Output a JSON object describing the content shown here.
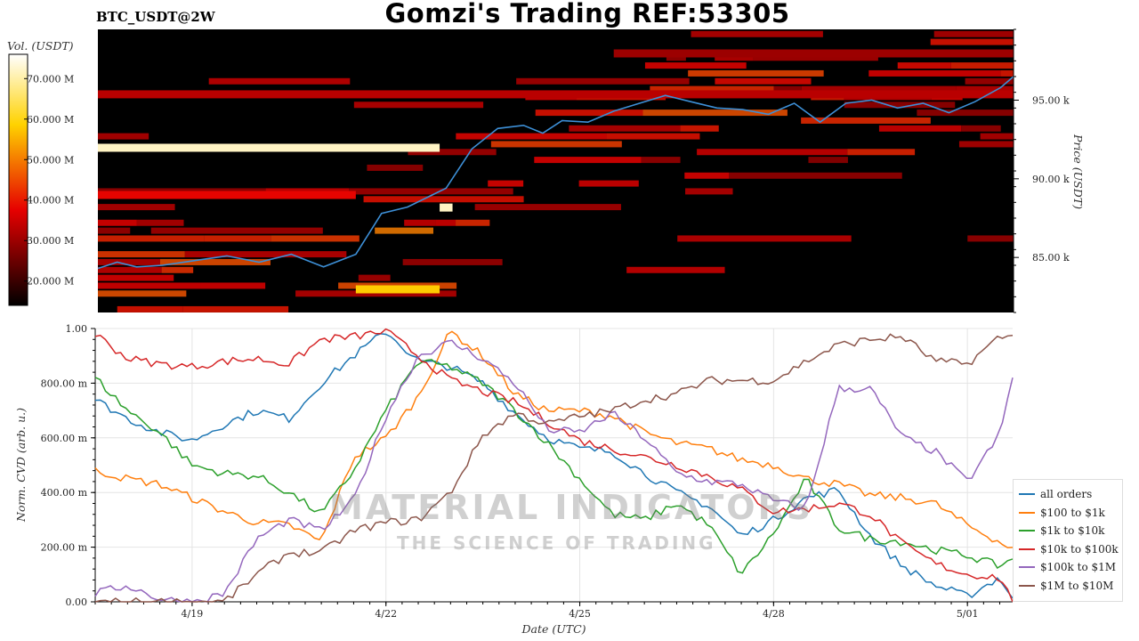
{
  "header": {
    "symbol": "BTC_USDT@2W",
    "title": "Gomzi's Trading REF:53305"
  },
  "watermark": {
    "line1": "MATERIAL INDICATORS",
    "line2": "THE SCIENCE OF TRADING"
  },
  "colorbar": {
    "label": "Vol. (USDT)",
    "ticks": [
      "20.000 M",
      "30.000 M",
      "40.000 M",
      "50.000 M",
      "60.000 M",
      "70.000 M"
    ],
    "tick_values": [
      20,
      30,
      40,
      50,
      60,
      70
    ],
    "range": [
      14,
      76
    ]
  },
  "chart_data": [
    {
      "type": "heatmap",
      "title": "",
      "ylabel": "Price (USDT)",
      "yticks": [
        "85.00 k",
        "90.00 k",
        "95.00 k"
      ],
      "ytick_values": [
        85000,
        90000,
        95000
      ],
      "ylim": [
        81500,
        99500
      ],
      "xlim": [
        0,
        14.2
      ],
      "price_line": {
        "color": "#3d8fd6",
        "x": [
          0,
          0.3,
          0.6,
          1,
          1.5,
          2,
          2.5,
          3,
          3.5,
          4,
          4.4,
          4.8,
          5.1,
          5.4,
          5.8,
          6.2,
          6.6,
          6.9,
          7.2,
          7.6,
          8,
          8.4,
          8.8,
          9.2,
          9.6,
          10,
          10.4,
          10.8,
          11.2,
          11.6,
          12,
          12.4,
          12.8,
          13.2,
          13.6,
          14,
          14.2
        ],
        "y": [
          84300,
          84700,
          84400,
          84500,
          84800,
          85100,
          84700,
          85200,
          84400,
          85200,
          87800,
          88200,
          88800,
          89400,
          91900,
          93200,
          93400,
          92900,
          93700,
          93600,
          94300,
          94800,
          95300,
          94900,
          94500,
          94400,
          94100,
          94800,
          93600,
          94800,
          95000,
          94500,
          94800,
          94200,
          94900,
          95800,
          96500
        ]
      },
      "walls": [
        {
          "y": 92000,
          "x0": 0,
          "x1": 5.3,
          "value": 72
        },
        {
          "y": 89000,
          "x0": 0,
          "x1": 4.0,
          "value": 38
        },
        {
          "y": 83000,
          "x0": 4.0,
          "x1": 5.3,
          "value": 58
        },
        {
          "y": 88200,
          "x0": 5.3,
          "x1": 5.5,
          "value": 72
        },
        {
          "y": 95400,
          "x0": 0,
          "x1": 14.2,
          "value": 33
        },
        {
          "y": 98000,
          "x0": 8.0,
          "x1": 14.2,
          "value": 30
        }
      ]
    },
    {
      "type": "line",
      "title": "",
      "xlabel": "Date (UTC)",
      "ylabel": "Norm. CVD (arb. u.)",
      "ylim": [
        0,
        1
      ],
      "xlim": [
        0,
        14.2
      ],
      "yticks": [
        "0.00",
        "200.00 m",
        "400.00 m",
        "600.00 m",
        "800.00 m",
        "1.00"
      ],
      "ytick_values": [
        0,
        0.2,
        0.4,
        0.6,
        0.8,
        1.0
      ],
      "xticks": [
        "4/19",
        "4/22",
        "4/25",
        "4/28",
        "5/01"
      ],
      "xtick_values": [
        1.5,
        4.5,
        7.5,
        10.5,
        13.5
      ],
      "x": [
        0,
        0.5,
        1,
        1.5,
        2,
        2.5,
        3,
        3.5,
        4,
        4.5,
        5,
        5.5,
        6,
        6.5,
        7,
        7.5,
        8,
        8.5,
        9,
        9.5,
        10,
        10.5,
        11,
        11.5,
        12,
        12.5,
        13,
        13.5,
        14,
        14.2
      ],
      "series": [
        {
          "name": "all orders",
          "color": "#1f77b4",
          "values": [
            0.74,
            0.67,
            0.62,
            0.59,
            0.65,
            0.7,
            0.67,
            0.8,
            0.9,
            0.99,
            0.88,
            0.86,
            0.8,
            0.69,
            0.6,
            0.56,
            0.55,
            0.47,
            0.4,
            0.35,
            0.24,
            0.3,
            0.38,
            0.41,
            0.24,
            0.13,
            0.06,
            0.02,
            0.09,
            0.01
          ]
        },
        {
          "name": "$100 to $1k",
          "color": "#ff7f0e",
          "values": [
            0.48,
            0.45,
            0.43,
            0.38,
            0.33,
            0.29,
            0.28,
            0.22,
            0.53,
            0.6,
            0.75,
            0.99,
            0.9,
            0.76,
            0.7,
            0.7,
            0.68,
            0.62,
            0.58,
            0.56,
            0.52,
            0.5,
            0.45,
            0.43,
            0.39,
            0.38,
            0.36,
            0.28,
            0.22,
            0.19
          ]
        },
        {
          "name": "$1k to $10k",
          "color": "#2ca02c",
          "values": [
            0.82,
            0.7,
            0.62,
            0.5,
            0.47,
            0.46,
            0.4,
            0.32,
            0.48,
            0.7,
            0.88,
            0.86,
            0.8,
            0.7,
            0.58,
            0.45,
            0.32,
            0.3,
            0.36,
            0.28,
            0.1,
            0.25,
            0.45,
            0.27,
            0.23,
            0.22,
            0.19,
            0.17,
            0.13,
            0.16
          ]
        },
        {
          "name": "$10k to $100k",
          "color": "#d62728",
          "values": [
            0.98,
            0.89,
            0.87,
            0.86,
            0.88,
            0.89,
            0.87,
            0.96,
            0.97,
            0.99,
            0.9,
            0.81,
            0.77,
            0.73,
            0.66,
            0.59,
            0.56,
            0.53,
            0.5,
            0.46,
            0.41,
            0.33,
            0.34,
            0.36,
            0.32,
            0.21,
            0.14,
            0.1,
            0.09,
            0.0
          ]
        },
        {
          "name": "$100k to $1M",
          "color": "#9467bd",
          "values": [
            0.03,
            0.06,
            0.01,
            0.0,
            0.03,
            0.23,
            0.3,
            0.26,
            0.37,
            0.68,
            0.9,
            0.95,
            0.89,
            0.8,
            0.63,
            0.62,
            0.69,
            0.6,
            0.47,
            0.44,
            0.43,
            0.37,
            0.34,
            0.78,
            0.78,
            0.6,
            0.55,
            0.44,
            0.61,
            0.82
          ]
        },
        {
          "name": "$1M to $10M",
          "color": "#8c564b",
          "values": [
            0.0,
            0.0,
            0.0,
            0.0,
            0.0,
            0.1,
            0.18,
            0.18,
            0.26,
            0.29,
            0.3,
            0.4,
            0.61,
            0.69,
            0.65,
            0.68,
            0.7,
            0.74,
            0.76,
            0.81,
            0.81,
            0.81,
            0.88,
            0.94,
            0.96,
            0.97,
            0.88,
            0.87,
            0.97,
            0.97
          ]
        }
      ]
    }
  ]
}
